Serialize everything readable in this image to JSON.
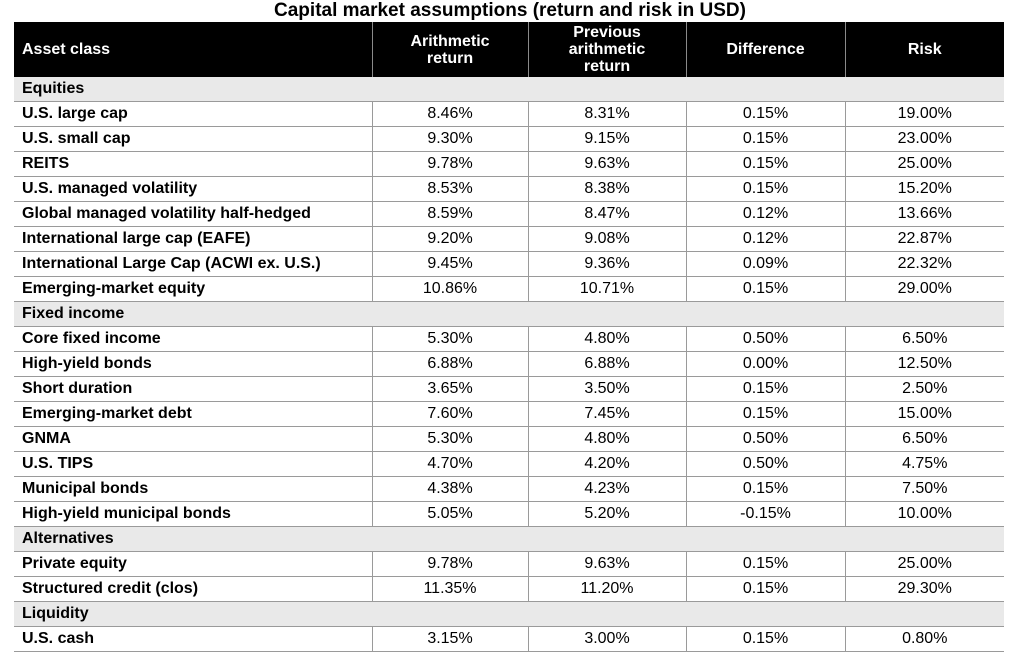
{
  "title": "Capital market assumptions (return and risk in USD)",
  "columns": [
    "Asset class",
    "Arithmetic return",
    "Previous arithmetic return",
    "Difference",
    "Risk"
  ],
  "sections": [
    {
      "name": "Equities",
      "rows": [
        [
          "U.S. large cap",
          "8.46%",
          "8.31%",
          "0.15%",
          "19.00%"
        ],
        [
          "U.S. small cap",
          "9.30%",
          "9.15%",
          "0.15%",
          "23.00%"
        ],
        [
          "REITS",
          "9.78%",
          "9.63%",
          "0.15%",
          "25.00%"
        ],
        [
          "U.S. managed volatility",
          "8.53%",
          "8.38%",
          "0.15%",
          "15.20%"
        ],
        [
          "Global managed volatility half-hedged",
          "8.59%",
          "8.47%",
          "0.12%",
          "13.66%"
        ],
        [
          "International large cap (EAFE)",
          "9.20%",
          "9.08%",
          "0.12%",
          "22.87%"
        ],
        [
          "International Large Cap (ACWI ex. U.S.)",
          "9.45%",
          "9.36%",
          "0.09%",
          "22.32%"
        ],
        [
          "Emerging-market equity",
          "10.86%",
          "10.71%",
          "0.15%",
          "29.00%"
        ]
      ]
    },
    {
      "name": "Fixed income",
      "rows": [
        [
          "Core fixed income",
          "5.30%",
          "4.80%",
          "0.50%",
          "6.50%"
        ],
        [
          "High-yield bonds",
          "6.88%",
          "6.88%",
          "0.00%",
          "12.50%"
        ],
        [
          "Short duration",
          "3.65%",
          "3.50%",
          "0.15%",
          "2.50%"
        ],
        [
          "Emerging-market debt",
          "7.60%",
          "7.45%",
          "0.15%",
          "15.00%"
        ],
        [
          "GNMA",
          "5.30%",
          "4.80%",
          "0.50%",
          "6.50%"
        ],
        [
          "U.S. TIPS",
          "4.70%",
          "4.20%",
          "0.50%",
          "4.75%"
        ],
        [
          "Municipal bonds",
          "4.38%",
          "4.23%",
          "0.15%",
          "7.50%"
        ],
        [
          "High-yield municipal bonds",
          "5.05%",
          "5.20%",
          "-0.15%",
          "10.00%"
        ]
      ]
    },
    {
      "name": "Alternatives",
      "rows": [
        [
          "Private equity",
          "9.78%",
          "9.63%",
          "0.15%",
          "25.00%"
        ],
        [
          "Structured credit (clos)",
          "11.35%",
          "11.20%",
          "0.15%",
          "29.30%"
        ]
      ]
    },
    {
      "name": "Liquidity",
      "rows": [
        [
          "U.S. cash",
          "3.15%",
          "3.00%",
          "0.15%",
          "0.80%"
        ]
      ]
    }
  ]
}
